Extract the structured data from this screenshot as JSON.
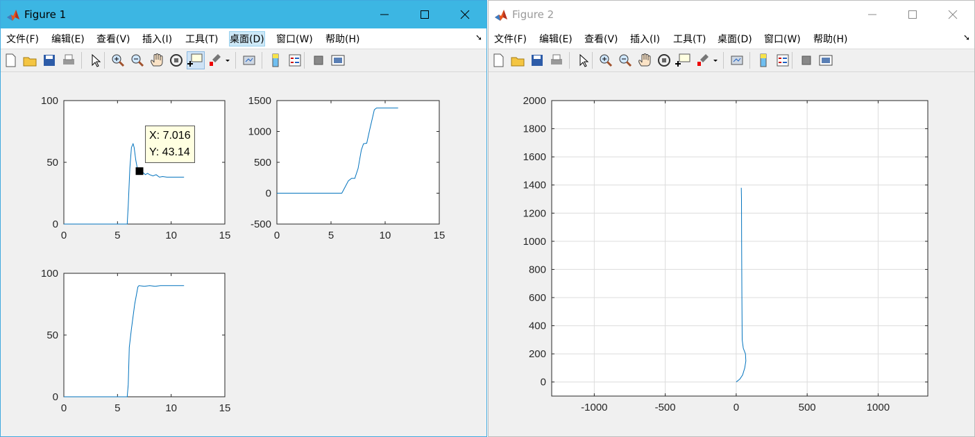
{
  "figure1": {
    "title": "Figure 1",
    "menu": [
      "文件(F)",
      "编辑(E)",
      "查看(V)",
      "插入(I)",
      "工具(T)",
      "桌面(D)",
      "窗口(W)",
      "帮助(H)"
    ],
    "active_menu": "桌面(D)",
    "toolbar_icons": [
      "new-figure-icon",
      "open-file-icon",
      "save-icon",
      "print-icon",
      "edit-plot-arrow-icon",
      "zoom-in-icon",
      "zoom-out-icon",
      "pan-hand-icon",
      "rotate-3d-icon",
      "data-cursor-icon",
      "brush-icon",
      "brush-dropdown-icon",
      "link-plot-icon",
      "insert-colorbar-icon",
      "insert-legend-icon",
      "hide-plot-tools-icon",
      "show-plot-tools-icon"
    ],
    "datatip": {
      "x_text": "X: 7.016",
      "y_text": "Y: 43.14",
      "x": 7.016,
      "y": 43.14
    }
  },
  "figure2": {
    "title": "Figure 2",
    "menu": [
      "文件(F)",
      "编辑(E)",
      "查看(V)",
      "插入(I)",
      "工具(T)",
      "桌面(D)",
      "窗口(W)",
      "帮助(H)"
    ]
  },
  "colors": {
    "line": "#0072bd",
    "axes_bg": "#ffffff",
    "grid": "#dcdcdc",
    "fig1_title_bar": "#3cb6e3"
  },
  "chart_data": [
    {
      "type": "line",
      "xlim": [
        0,
        15
      ],
      "ylim": [
        0,
        100
      ],
      "xticks": [
        0,
        5,
        10,
        15
      ],
      "yticks": [
        0,
        50,
        100
      ],
      "xtick_labels": [
        "0",
        "5",
        "10",
        "15"
      ],
      "ytick_labels": [
        "0",
        "50",
        "100"
      ],
      "grid": false,
      "x": [
        0,
        5.9,
        6.0,
        6.15,
        6.3,
        6.45,
        6.55,
        6.7,
        6.85,
        7.0,
        7.2,
        7.4,
        7.6,
        7.8,
        8.0,
        8.3,
        8.6,
        8.9,
        9.2,
        9.6,
        10.0,
        10.5,
        11.2
      ],
      "y": [
        0,
        0,
        15,
        45,
        62,
        65,
        62,
        52,
        45,
        43,
        42,
        41.5,
        40,
        41,
        40,
        39,
        40,
        38,
        38.5,
        38,
        38,
        38,
        38
      ]
    },
    {
      "type": "line",
      "xlim": [
        0,
        15
      ],
      "ylim": [
        -500,
        1500
      ],
      "xticks": [
        0,
        5,
        10,
        15
      ],
      "yticks": [
        -500,
        0,
        500,
        1000,
        1500
      ],
      "xtick_labels": [
        "0",
        "5",
        "10",
        "15"
      ],
      "ytick_labels": [
        "-500",
        "0",
        "500",
        "1000",
        "1500"
      ],
      "grid": false,
      "x": [
        0,
        6.0,
        6.3,
        6.6,
        6.9,
        7.2,
        7.5,
        7.8,
        8.0,
        8.3,
        8.6,
        8.8,
        9.0,
        9.2,
        9.6,
        10.5,
        11.2
      ],
      "y": [
        0,
        0,
        100,
        200,
        240,
        240,
        400,
        700,
        800,
        810,
        1050,
        1200,
        1350,
        1380,
        1380,
        1380,
        1380
      ]
    },
    {
      "type": "line",
      "xlim": [
        0,
        15
      ],
      "ylim": [
        0,
        100
      ],
      "xticks": [
        0,
        5,
        10,
        15
      ],
      "yticks": [
        0,
        50,
        100
      ],
      "xtick_labels": [
        "0",
        "5",
        "10",
        "15"
      ],
      "ytick_labels": [
        "0",
        "50",
        "100"
      ],
      "grid": false,
      "x": [
        0,
        5.9,
        6.0,
        6.1,
        6.3,
        6.6,
        6.9,
        7.0,
        7.5,
        8.0,
        8.5,
        9.0,
        10.0,
        11.2
      ],
      "y": [
        0,
        0,
        10,
        40,
        55,
        75,
        89,
        90,
        89.5,
        90,
        89.5,
        90,
        90,
        90
      ]
    },
    {
      "type": "line",
      "xlim": [
        -1300,
        1350
      ],
      "ylim": [
        -100,
        2000
      ],
      "xticks": [
        -1000,
        -500,
        0,
        500,
        1000
      ],
      "yticks": [
        0,
        200,
        400,
        600,
        800,
        1000,
        1200,
        1400,
        1600,
        1800,
        2000
      ],
      "xtick_labels": [
        "-1000",
        "-500",
        "0",
        "500",
        "1000"
      ],
      "ytick_labels": [
        "0",
        "200",
        "400",
        "600",
        "800",
        "1000",
        "1200",
        "1400",
        "1600",
        "1800",
        "2000"
      ],
      "grid": true,
      "x": [
        0,
        25,
        45,
        60,
        68,
        65,
        50,
        42,
        40,
        38,
        37,
        36
      ],
      "y": [
        0,
        20,
        50,
        100,
        150,
        200,
        240,
        300,
        600,
        1000,
        1300,
        1380
      ]
    }
  ]
}
